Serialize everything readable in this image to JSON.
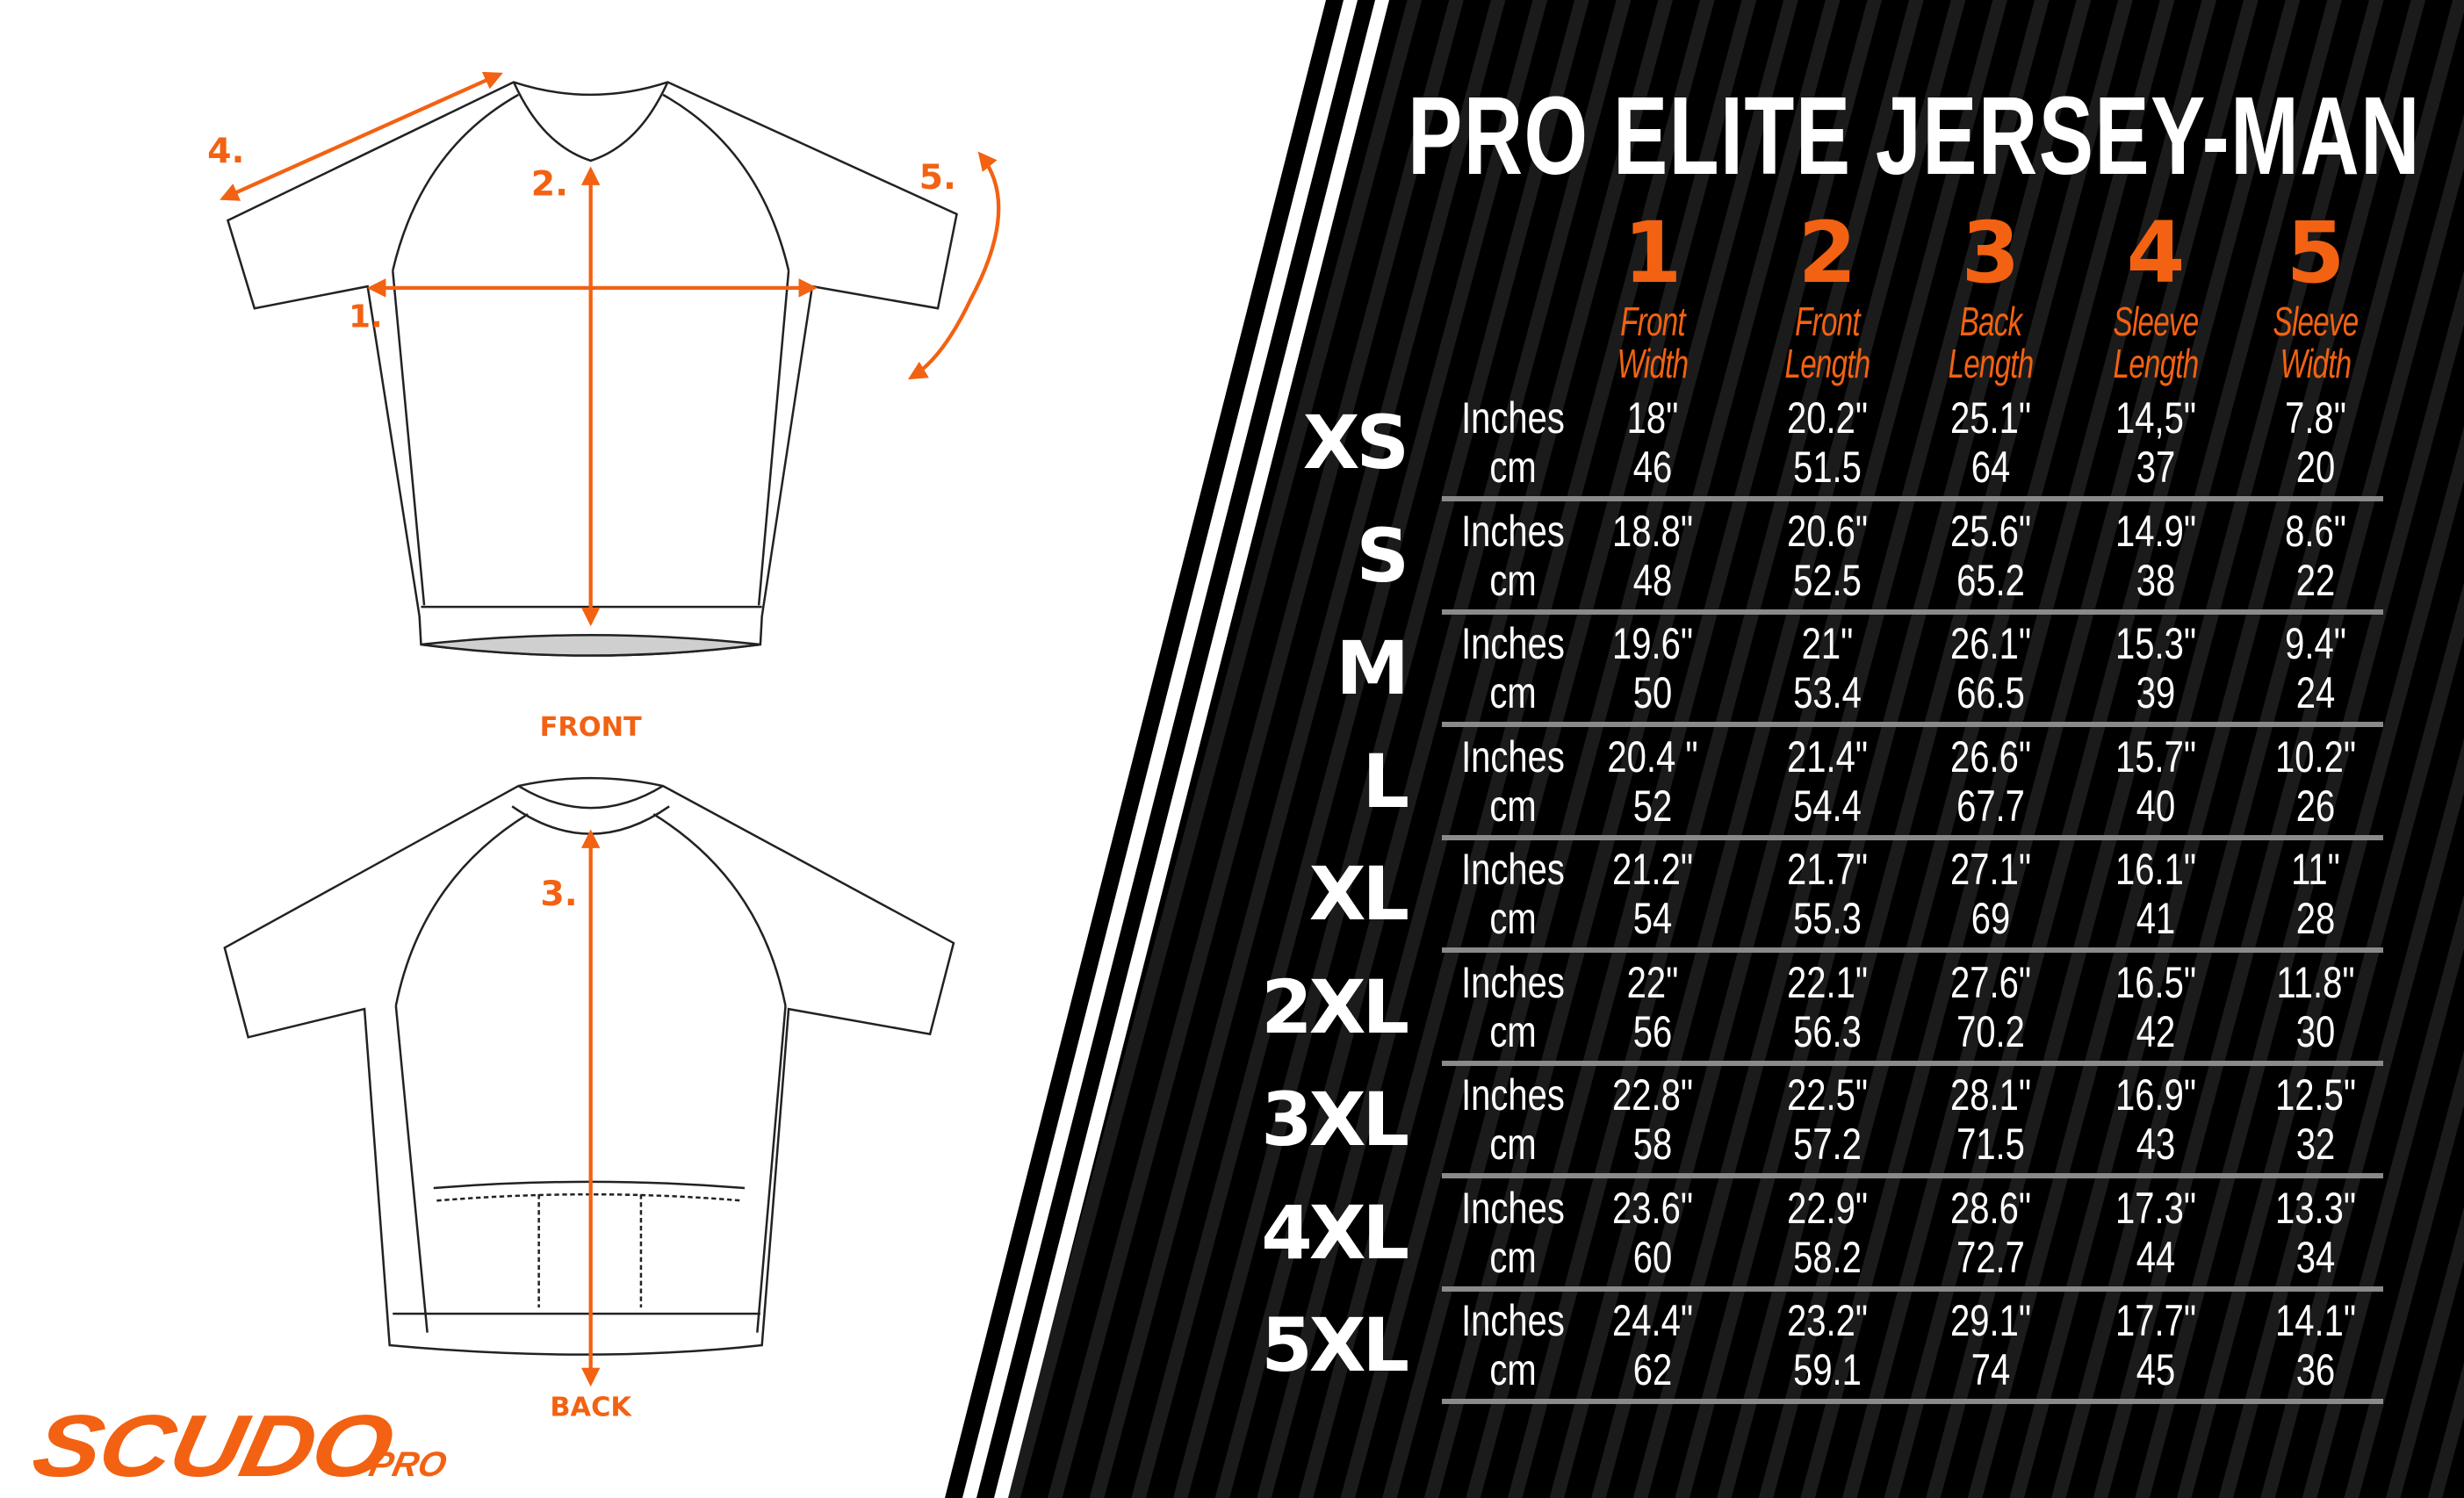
{
  "title": "PRO ELITE JERSEY-MAN",
  "colors": {
    "accent": "#f26212",
    "panel": "#000000",
    "text": "#ffffff",
    "separator": "#8a8a8a"
  },
  "columns": [
    {
      "num": "1",
      "line1": "Front",
      "line2": "Width"
    },
    {
      "num": "2",
      "line1": "Front",
      "line2": "Length"
    },
    {
      "num": "3",
      "line1": "Back",
      "line2": "Length"
    },
    {
      "num": "4",
      "line1": "Sleeve",
      "line2": "Length"
    },
    {
      "num": "5",
      "line1": "Sleeve",
      "line2": "Width"
    }
  ],
  "units": {
    "inches": "Inches",
    "cm": "cm"
  },
  "rows": [
    {
      "size": "XS",
      "inches": [
        "18\"",
        "20.2\"",
        "25.1\"",
        "14,5\"",
        "7.8\""
      ],
      "cm": [
        "46",
        "51.5",
        "64",
        "37",
        "20"
      ]
    },
    {
      "size": "S",
      "inches": [
        "18.8\"",
        "20.6\"",
        "25.6\"",
        "14.9\"",
        "8.6\""
      ],
      "cm": [
        "48",
        "52.5",
        "65.2",
        "38",
        "22"
      ]
    },
    {
      "size": "M",
      "inches": [
        "19.6\"",
        "21\"",
        "26.1\"",
        "15.3\"",
        "9.4\""
      ],
      "cm": [
        "50",
        "53.4",
        "66.5",
        "39",
        "24"
      ]
    },
    {
      "size": "L",
      "inches": [
        "20.4 \"",
        "21.4\"",
        "26.6\"",
        "15.7\"",
        "10.2\""
      ],
      "cm": [
        "52",
        "54.4",
        "67.7",
        "40",
        "26"
      ]
    },
    {
      "size": "XL",
      "inches": [
        "21.2\"",
        "21.7\"",
        "27.1\"",
        "16.1\"",
        "11\""
      ],
      "cm": [
        "54",
        "55.3",
        "69",
        "41",
        "28"
      ]
    },
    {
      "size": "2XL",
      "inches": [
        "22\"",
        "22.1\"",
        "27.6\"",
        "16.5\"",
        "11.8\""
      ],
      "cm": [
        "56",
        "56.3",
        "70.2",
        "42",
        "30"
      ]
    },
    {
      "size": "3XL",
      "inches": [
        "22.8\"",
        "22.5\"",
        "28.1\"",
        "16.9\"",
        "12.5\""
      ],
      "cm": [
        "58",
        "57.2",
        "71.5",
        "43",
        "32"
      ]
    },
    {
      "size": "4XL",
      "inches": [
        "23.6\"",
        "22.9\"",
        "28.6\"",
        "17.3\"",
        "13.3\""
      ],
      "cm": [
        "60",
        "58.2",
        "72.7",
        "44",
        "34"
      ]
    },
    {
      "size": "5XL",
      "inches": [
        "24.4\"",
        "23.2\"",
        "29.1\"",
        "17.7\"",
        "14.1\""
      ],
      "cm": [
        "62",
        "59.1",
        "74",
        "45",
        "36"
      ]
    }
  ],
  "diagram": {
    "front_label": "FRONT",
    "back_label": "BACK",
    "markers": [
      "1.",
      "2.",
      "3.",
      "4.",
      "5."
    ]
  },
  "logo": {
    "main": "SCUDO",
    "sub": "PRO"
  }
}
